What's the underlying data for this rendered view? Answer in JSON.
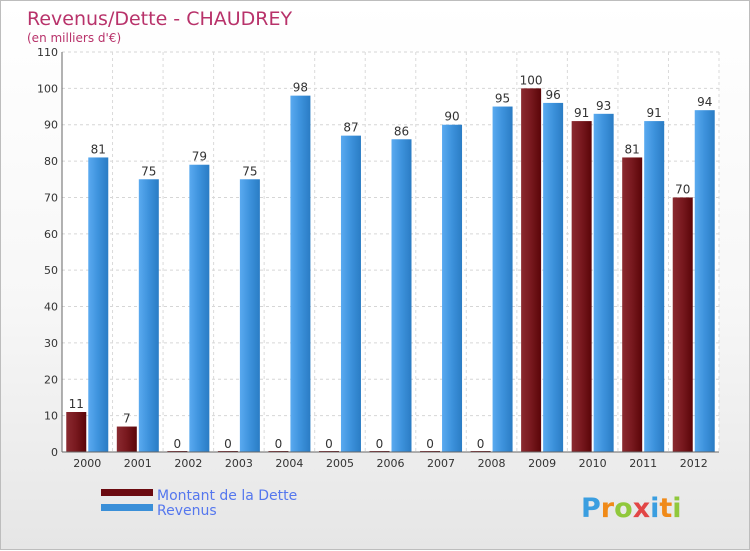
{
  "chart_data": {
    "type": "bar",
    "title": "Revenus/Dette - CHAUDREY",
    "subtitle": "(en milliers d'€)",
    "categories": [
      "2000",
      "2001",
      "2002",
      "2003",
      "2004",
      "2005",
      "2006",
      "2007",
      "2008",
      "2009",
      "2010",
      "2011",
      "2012"
    ],
    "series": [
      {
        "name": "Montant de la Dette",
        "color": "#6b0a10",
        "values": [
          11,
          7,
          0,
          0,
          0,
          0,
          0,
          0,
          0,
          100,
          91,
          81,
          70
        ]
      },
      {
        "name": "Revenus",
        "color": "#3a8fd8",
        "values": [
          81,
          75,
          79,
          75,
          98,
          87,
          86,
          90,
          95,
          96,
          93,
          91,
          94
        ]
      }
    ],
    "ylim": [
      0,
      110
    ],
    "yticks": [
      0,
      10,
      20,
      30,
      40,
      50,
      60,
      70,
      80,
      90,
      100,
      110
    ],
    "grid": true,
    "legend_position": "bottom-left"
  },
  "brand": {
    "letters": [
      "P",
      "r",
      "o",
      "x",
      "i",
      "t",
      "i"
    ],
    "colors": [
      "#3a9ee0",
      "#f08a18",
      "#90c83c",
      "#e24646",
      "#3a9ee0",
      "#f08a18",
      "#90c83c"
    ]
  }
}
